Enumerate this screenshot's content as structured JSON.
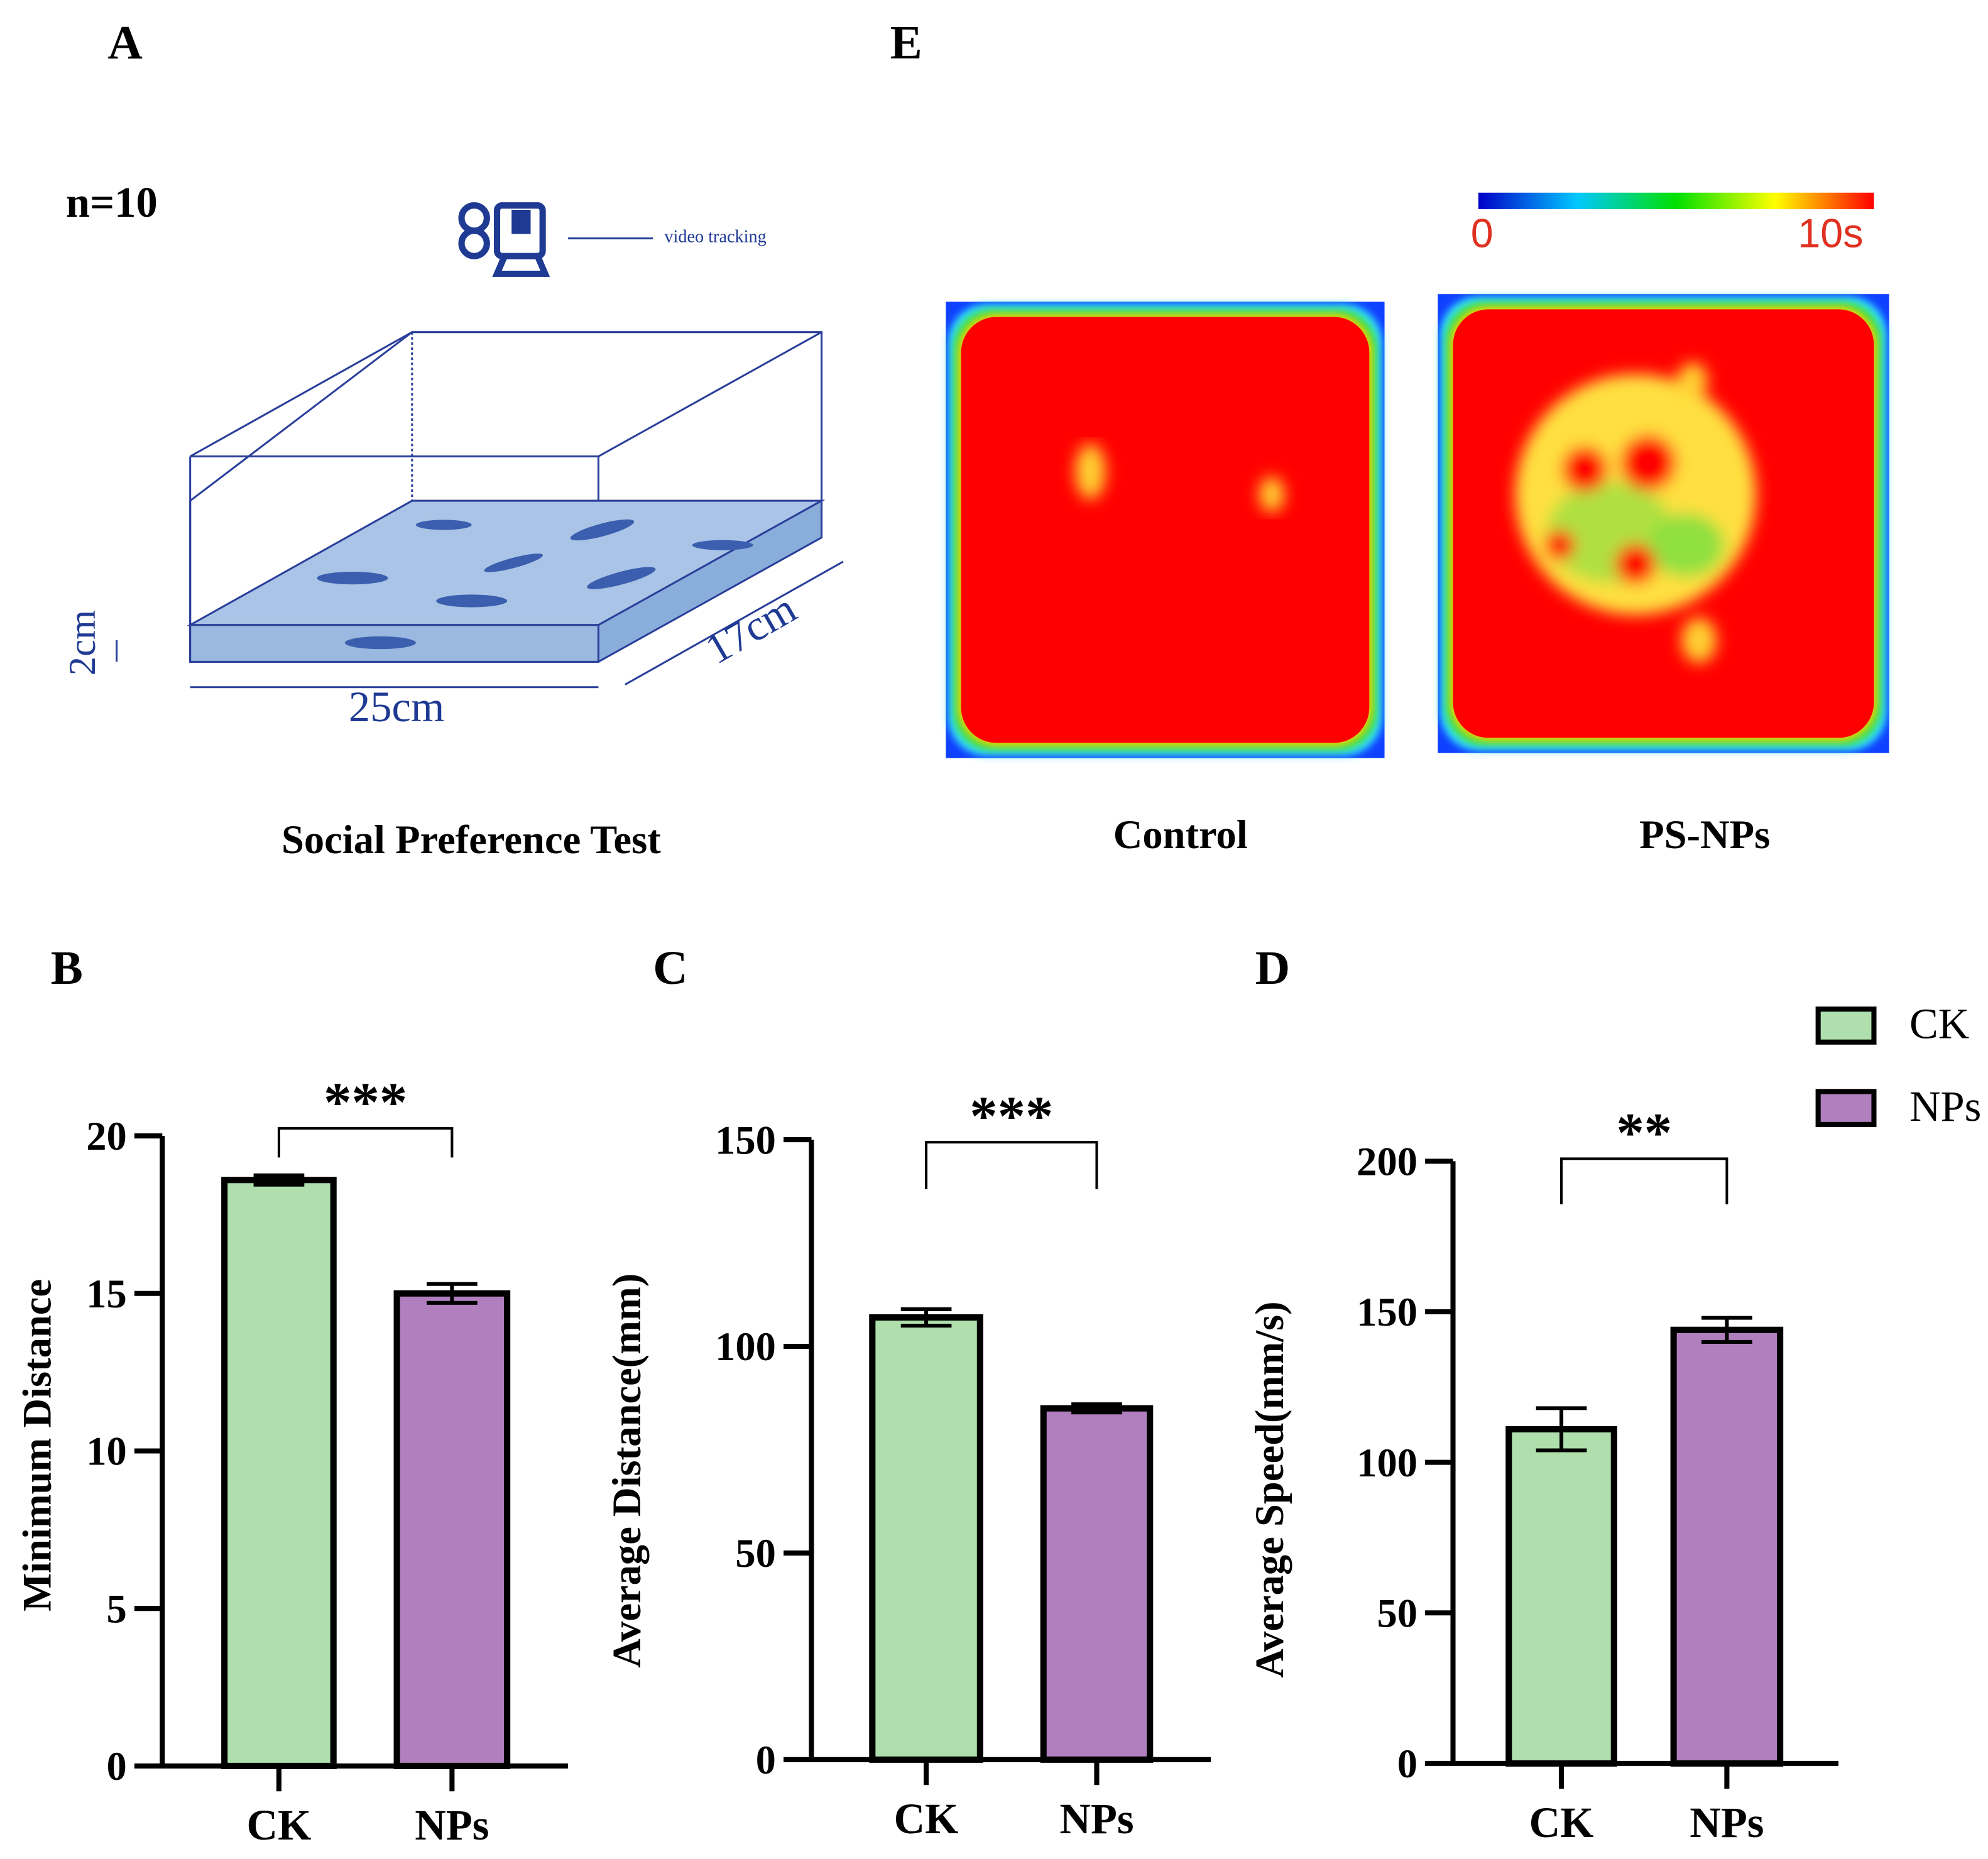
{
  "panels": {
    "A": "A",
    "B": "B",
    "C": "C",
    "D": "D",
    "E": "E"
  },
  "panel_a": {
    "n_label": "n=10",
    "camera_label": "video tracking",
    "depth": "2cm",
    "width": "25cm",
    "length": "17cm",
    "caption": "Social Preference Test"
  },
  "panel_e": {
    "colorbar_min": "0",
    "colorbar_max": "10s",
    "control_label": "Control",
    "treatment_label": "PS-NPs"
  },
  "legend": [
    {
      "label": "CK",
      "color": "#aedfac"
    },
    {
      "label": "NPs",
      "color": "#b07fbe"
    }
  ],
  "chart_data": [
    {
      "type": "bar",
      "panel": "B",
      "categories": [
        "CK",
        "NPs"
      ],
      "values": [
        18.6,
        15.0
      ],
      "errors": [
        0.15,
        0.3
      ],
      "colors": [
        "#aedfac",
        "#b07fbe"
      ],
      "ylabel": "Minimum Distance",
      "ylim": [
        0,
        20
      ],
      "yticks": [
        "0",
        "5",
        "10",
        "15",
        "20"
      ],
      "significance": "***"
    },
    {
      "type": "bar",
      "panel": "C",
      "categories": [
        "CK",
        "NPs"
      ],
      "values": [
        107,
        85
      ],
      "errors": [
        2,
        1
      ],
      "colors": [
        "#aedfac",
        "#b07fbe"
      ],
      "ylabel": "Average Distance(mm)",
      "ylim": [
        0,
        150
      ],
      "yticks": [
        "0",
        "50",
        "100",
        "150"
      ],
      "significance": "***"
    },
    {
      "type": "bar",
      "panel": "D",
      "categories": [
        "CK",
        "NPs"
      ],
      "values": [
        111,
        144
      ],
      "errors": [
        7,
        4
      ],
      "colors": [
        "#aedfac",
        "#b07fbe"
      ],
      "ylabel": "Average Speed(mm/s)",
      "ylim": [
        0,
        200
      ],
      "yticks": [
        "0",
        "50",
        "100",
        "150",
        "200"
      ],
      "significance": "**"
    }
  ]
}
